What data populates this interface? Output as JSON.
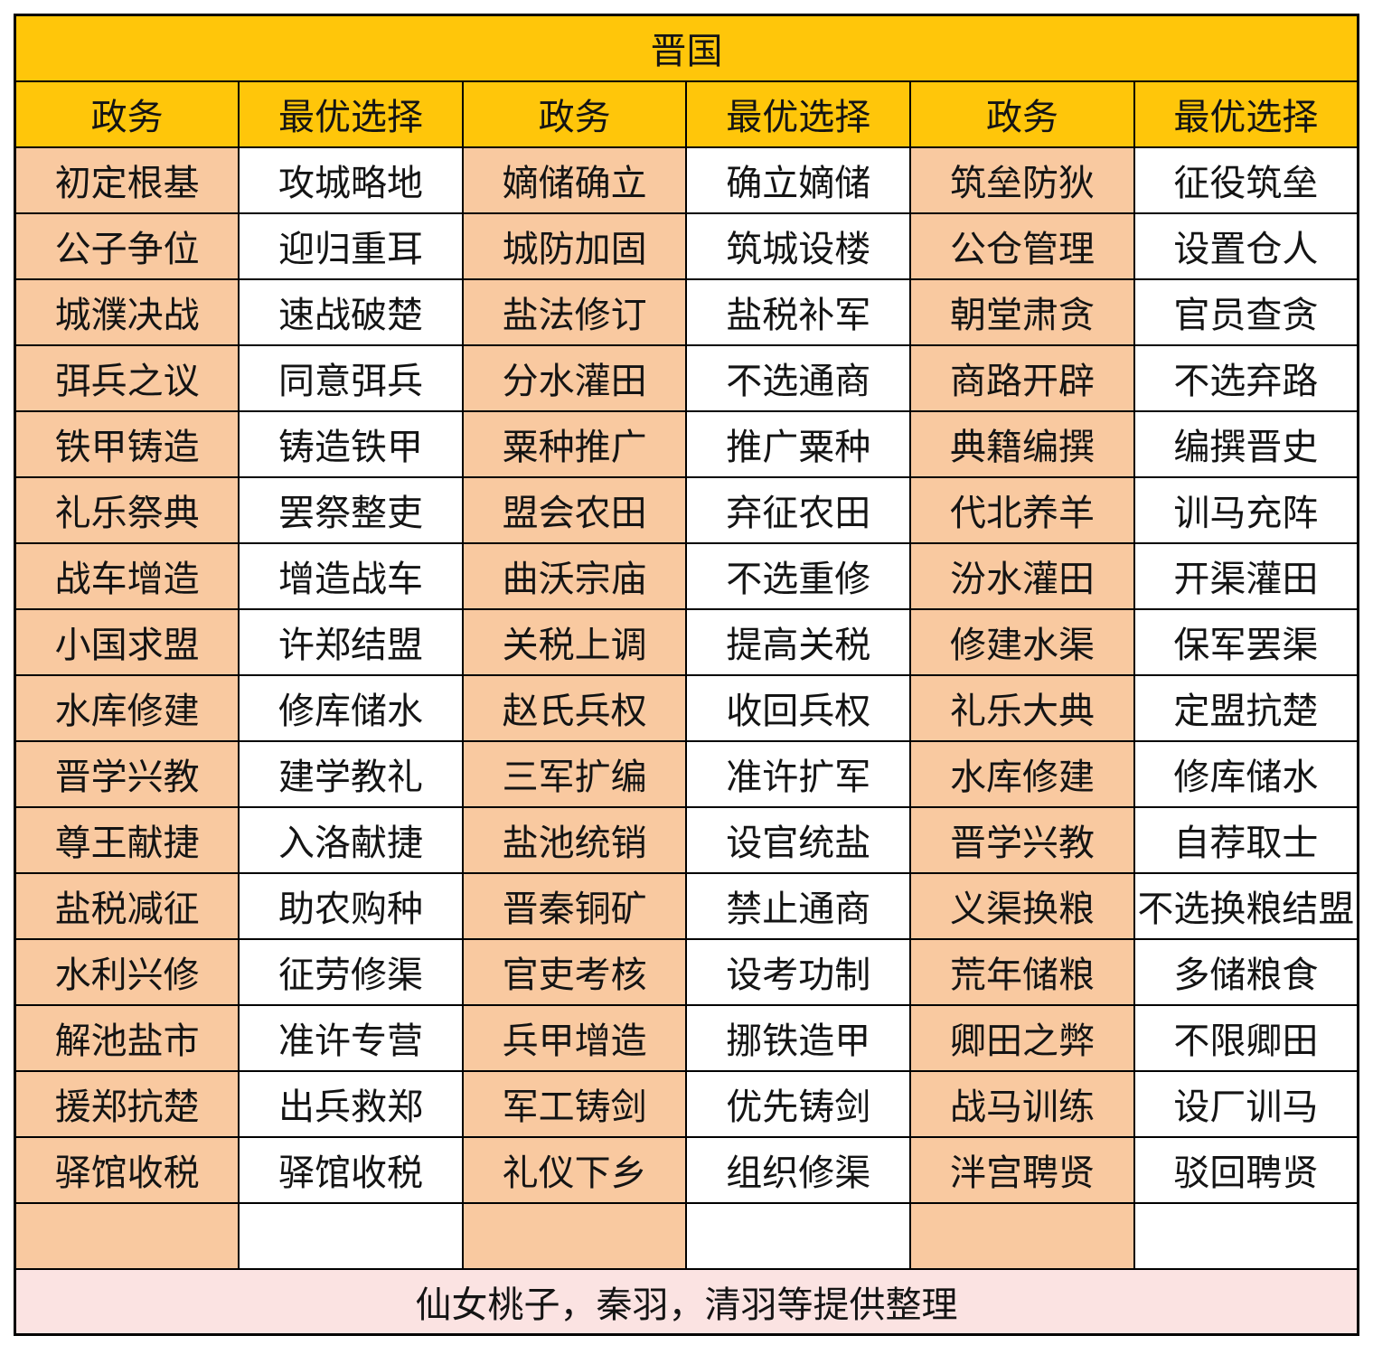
{
  "title": "晋国",
  "column_headers": [
    "政务",
    "最优选择",
    "政务",
    "最优选择",
    "政务",
    "最优选择"
  ],
  "rows": [
    [
      "初定根基",
      "攻城略地",
      "嫡储确立",
      "确立嫡储",
      "筑垒防狄",
      "征役筑垒"
    ],
    [
      "公子争位",
      "迎归重耳",
      "城防加固",
      "筑城设楼",
      "公仓管理",
      "设置仓人"
    ],
    [
      "城濮决战",
      "速战破楚",
      "盐法修订",
      "盐税补军",
      "朝堂肃贪",
      "官员查贪"
    ],
    [
      "弭兵之议",
      "同意弭兵",
      "分水灌田",
      "不选通商",
      "商路开辟",
      "不选弃路"
    ],
    [
      "铁甲铸造",
      "铸造铁甲",
      "粟种推广",
      "推广粟种",
      "典籍编撰",
      "编撰晋史"
    ],
    [
      "礼乐祭典",
      "罢祭整吏",
      "盟会农田",
      "弃征农田",
      "代北养羊",
      "训马充阵"
    ],
    [
      "战车增造",
      "增造战车",
      "曲沃宗庙",
      "不选重修",
      "汾水灌田",
      "开渠灌田"
    ],
    [
      "小国求盟",
      "许郑结盟",
      "关税上调",
      "提高关税",
      "修建水渠",
      "保军罢渠"
    ],
    [
      "水库修建",
      "修库储水",
      "赵氏兵权",
      "收回兵权",
      "礼乐大典",
      "定盟抗楚"
    ],
    [
      "晋学兴教",
      "建学教礼",
      "三军扩编",
      "准许扩军",
      "水库修建",
      "修库储水"
    ],
    [
      "尊王献捷",
      "入洛献捷",
      "盐池统销",
      "设官统盐",
      "晋学兴教",
      "自荐取士"
    ],
    [
      "盐税减征",
      "助农购种",
      "晋秦铜矿",
      "禁止通商",
      "义渠换粮",
      "不选换粮结盟"
    ],
    [
      "水利兴修",
      "征劳修渠",
      "官吏考核",
      "设考功制",
      "荒年储粮",
      "多储粮食"
    ],
    [
      "解池盐市",
      "准许专营",
      "兵甲增造",
      "挪铁造甲",
      "卿田之弊",
      "不限卿田"
    ],
    [
      "援郑抗楚",
      "出兵救郑",
      "军工铸剑",
      "优先铸剑",
      "战马训练",
      "设厂训马"
    ],
    [
      "驿馆收税",
      "驿馆收税",
      "礼仪下乡",
      "组织修渠",
      "泮宫聘贤",
      "驳回聘贤"
    ],
    [
      "",
      "",
      "",
      "",
      "",
      ""
    ]
  ],
  "footer": "仙女桃子，秦羽，清羽等提供整理",
  "colors": {
    "header_yellow": "#FFC60A",
    "politics_orange": "#F9C9A0",
    "choice_white": "#FFFFFF",
    "footer_pink": "#FBE3E2",
    "border_black": "#000000"
  }
}
